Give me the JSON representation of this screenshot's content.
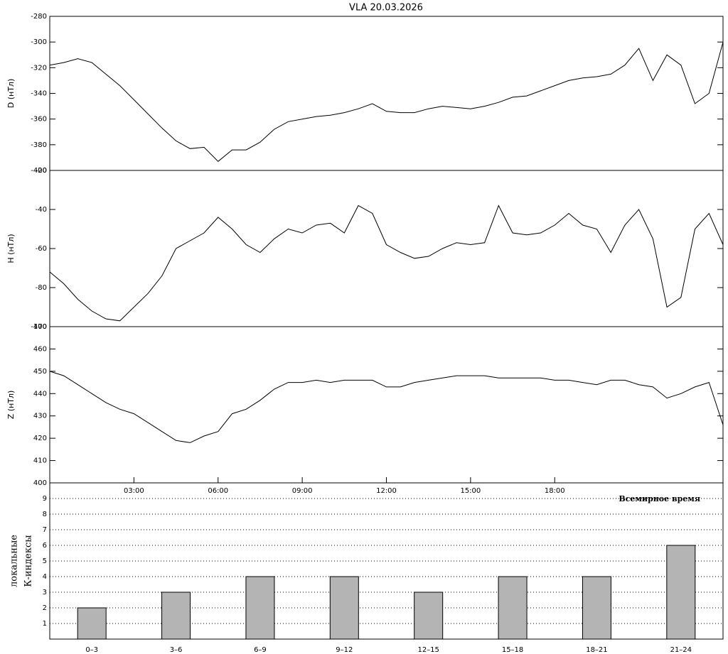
{
  "chart_data": [
    {
      "type": "line",
      "title": "VLA   20.03.2026",
      "ylabel": "D (нТл)",
      "x": [
        0,
        0.5,
        1,
        1.5,
        2,
        2.5,
        3,
        3.5,
        4,
        4.5,
        5,
        5.5,
        6,
        6.5,
        7,
        7.5,
        8,
        8.5,
        9,
        9.5,
        10,
        10.5,
        11,
        11.5,
        12,
        12.5,
        13,
        13.5,
        14,
        14.5,
        15,
        15.5,
        16,
        16.5,
        17,
        17.5,
        18,
        18.5,
        19,
        19.5,
        20,
        20.5,
        21,
        21.5,
        22,
        22.5,
        23,
        23.5,
        24
      ],
      "values": [
        -318,
        -316,
        -313,
        -316,
        -325,
        -334,
        -345,
        -356,
        -367,
        -377,
        -383,
        -382,
        -393,
        -384,
        -384,
        -378,
        -368,
        -362,
        -360,
        -358,
        -357,
        -355,
        -352,
        -348,
        -354,
        -355,
        -355,
        -352,
        -350,
        -351,
        -352,
        -350,
        -347,
        -343,
        -342,
        -338,
        -334,
        -330,
        -328,
        -327,
        -325,
        -318,
        -305,
        -330,
        -310,
        -318,
        -348,
        -340,
        -300
      ],
      "color": "#000000",
      "xlim": [
        0,
        24
      ],
      "ylim": [
        -400,
        -280
      ],
      "yticks": [
        -400,
        -380,
        -360,
        -340,
        -320,
        -300,
        -280
      ]
    },
    {
      "type": "line",
      "ylabel": "H (нТл)",
      "x": [
        0,
        0.5,
        1,
        1.5,
        2,
        2.5,
        3,
        3.5,
        4,
        4.5,
        5,
        5.5,
        6,
        6.5,
        7,
        7.5,
        8,
        8.5,
        9,
        9.5,
        10,
        10.5,
        11,
        11.5,
        12,
        12.5,
        13,
        13.5,
        14,
        14.5,
        15,
        15.5,
        16,
        16.5,
        17,
        17.5,
        18,
        18.5,
        19,
        19.5,
        20,
        20.5,
        21,
        21.5,
        22,
        22.5,
        23,
        23.5,
        24
      ],
      "values": [
        -72,
        -78,
        -86,
        -92,
        -96,
        -97,
        -90,
        -83,
        -74,
        -60,
        -56,
        -52,
        -44,
        -50,
        -58,
        -62,
        -55,
        -50,
        -52,
        -48,
        -47,
        -52,
        -38,
        -42,
        -58,
        -62,
        -65,
        -64,
        -60,
        -57,
        -58,
        -57,
        -38,
        -52,
        -53,
        -52,
        -48,
        -42,
        -48,
        -50,
        -62,
        -48,
        -40,
        -55,
        -90,
        -85,
        -50,
        -42,
        -58
      ],
      "color": "#000000",
      "xlim": [
        0,
        24
      ],
      "ylim": [
        -100,
        -20
      ],
      "yticks": [
        -100,
        -80,
        -60,
        -40,
        -20
      ]
    },
    {
      "type": "line",
      "ylabel": "Z (нТл)",
      "xlabel": "Всемирное время",
      "x": [
        0,
        0.5,
        1,
        1.5,
        2,
        2.5,
        3,
        3.5,
        4,
        4.5,
        5,
        5.5,
        6,
        6.5,
        7,
        7.5,
        8,
        8.5,
        9,
        9.5,
        10,
        10.5,
        11,
        11.5,
        12,
        12.5,
        13,
        13.5,
        14,
        14.5,
        15,
        15.5,
        16,
        16.5,
        17,
        17.5,
        18,
        18.5,
        19,
        19.5,
        20,
        20.5,
        21,
        21.5,
        22,
        22.5,
        23,
        23.5,
        24
      ],
      "values": [
        450,
        448,
        444,
        440,
        436,
        433,
        431,
        427,
        423,
        419,
        418,
        421,
        423,
        431,
        433,
        437,
        442,
        445,
        445,
        446,
        445,
        446,
        446,
        446,
        443,
        443,
        445,
        446,
        447,
        448,
        448,
        448,
        447,
        447,
        447,
        447,
        446,
        446,
        445,
        444,
        446,
        446,
        444,
        443,
        438,
        440,
        443,
        445,
        426
      ],
      "color": "#000000",
      "xlim": [
        0,
        24
      ],
      "ylim": [
        400,
        470
      ],
      "yticks": [
        400,
        410,
        420,
        430,
        440,
        450,
        460,
        470
      ],
      "xticks": [
        {
          "value": 3,
          "label": "03:00"
        },
        {
          "value": 6,
          "label": "06:00"
        },
        {
          "value": 9,
          "label": "09:00"
        },
        {
          "value": 12,
          "label": "12:00"
        },
        {
          "value": 15,
          "label": "15:00"
        },
        {
          "value": 18,
          "label": "18:00"
        }
      ]
    },
    {
      "type": "bar",
      "ylabel": [
        "локальные",
        "К-индексы"
      ],
      "categories": [
        "0–3",
        "3–6",
        "6–9",
        "9–12",
        "12–15",
        "15–18",
        "18–21",
        "21–24"
      ],
      "values": [
        2,
        3,
        4,
        4,
        3,
        4,
        4,
        6
      ],
      "color": "#b4b4b4",
      "ylim": [
        0,
        10
      ],
      "yticks": [
        1,
        2,
        3,
        4,
        5,
        6,
        7,
        8,
        9
      ],
      "grid": true
    }
  ]
}
